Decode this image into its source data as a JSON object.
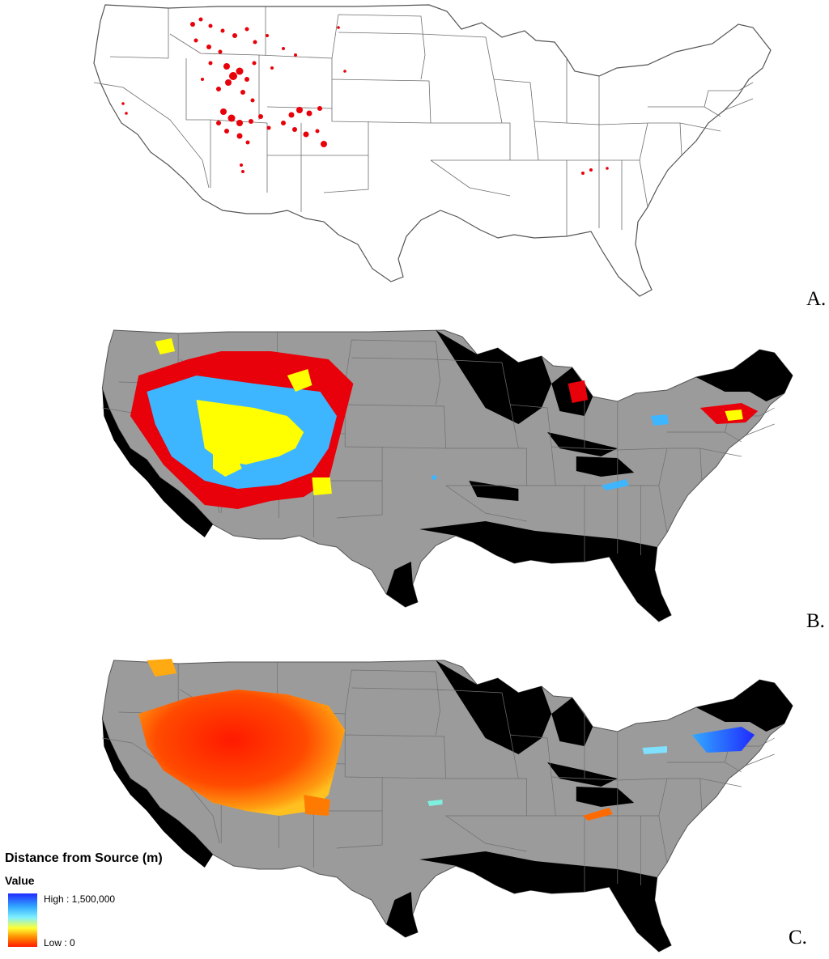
{
  "panels": {
    "a": {
      "letter": "A."
    },
    "b": {
      "letter": "B."
    },
    "c": {
      "letter": "C."
    }
  },
  "legend": {
    "title": "Distance from Source (m)",
    "subtitle": "Value",
    "high_label": "High : 1,500,000",
    "low_label": "Low : 0"
  },
  "colors": {
    "land": "#9b9b9b",
    "excluded": "#000000",
    "boundary": "#555555",
    "occurrence": "#e8000a",
    "class_red": "#e8000a",
    "class_yellow": "#ffff00",
    "class_blue": "#3db5ff",
    "ramp_low": "#ff1a00",
    "ramp_high": "#1f2bff"
  }
}
